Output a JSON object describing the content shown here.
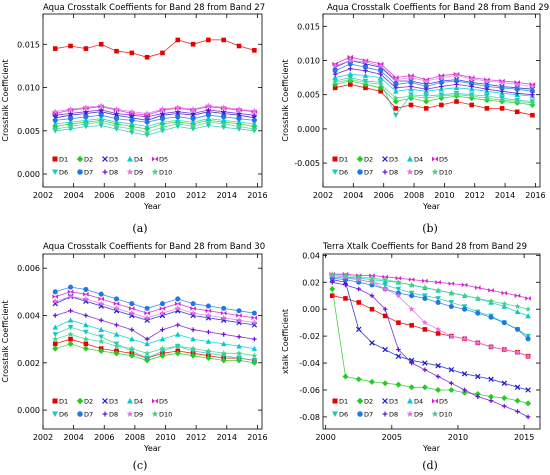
{
  "colors": {
    "D1": "#e60000",
    "D2": "#22cc22",
    "D3": "#1a1acc",
    "D4": "#00cccc",
    "D5": "#d21ed2",
    "D6": "#1fc8b4",
    "D7": "#1f78e6",
    "D8": "#6b0dd6",
    "D9": "#e673e6",
    "D10": "#41d287"
  },
  "chart_data": [
    {
      "type": "scatter",
      "panel_label": "(a)",
      "title": "Aqua Crosstalk Coeffients for Band 28 from Band 27",
      "xlabel": "Year",
      "ylabel": "Crosstalk Coefficient",
      "xlim": [
        2002,
        2016.3
      ],
      "ylim": [
        -0.0015,
        0.0185
      ],
      "xticks": [
        2002,
        2004,
        2006,
        2008,
        2010,
        2012,
        2014,
        2016
      ],
      "yticks": [
        0.0,
        0.005,
        0.01,
        0.015
      ],
      "ytick_labels": [
        "0.000",
        "0.005",
        "0.010",
        "0.015"
      ],
      "legend": [
        [
          "D1",
          "D2",
          "D3",
          "D4",
          "D5"
        ],
        [
          "D6",
          "D7",
          "D8",
          "D9",
          "D10"
        ]
      ],
      "legend_placement": "bottom-left",
      "x": [
        2002.8,
        2003.8,
        2004.8,
        2005.8,
        2006.8,
        2007.8,
        2008.8,
        2009.8,
        2010.8,
        2011.8,
        2012.8,
        2013.8,
        2014.8,
        2015.8
      ],
      "series": [
        {
          "name": "D1",
          "values": [
            0.0145,
            0.0148,
            0.0145,
            0.015,
            0.0142,
            0.014,
            0.0135,
            0.014,
            0.0155,
            0.015,
            0.0155,
            0.0155,
            0.0148,
            0.0143
          ]
        },
        {
          "name": "D2",
          "values": [
            0.0055,
            0.0058,
            0.006,
            0.0062,
            0.0058,
            0.0055,
            0.0052,
            0.0058,
            0.006,
            0.0058,
            0.0062,
            0.006,
            0.0058,
            0.0055
          ]
        },
        {
          "name": "D3",
          "values": [
            0.0065,
            0.0068,
            0.007,
            0.0072,
            0.0068,
            0.0065,
            0.0062,
            0.0068,
            0.007,
            0.0068,
            0.0072,
            0.007,
            0.0068,
            0.0065
          ]
        },
        {
          "name": "D4",
          "values": [
            0.0058,
            0.006,
            0.0062,
            0.0064,
            0.006,
            0.0058,
            0.0055,
            0.006,
            0.0062,
            0.006,
            0.0064,
            0.0062,
            0.006,
            0.0058
          ]
        },
        {
          "name": "D5",
          "values": [
            0.007,
            0.0074,
            0.0076,
            0.0078,
            0.0074,
            0.007,
            0.0068,
            0.0074,
            0.0076,
            0.0074,
            0.0078,
            0.0076,
            0.0074,
            0.0072
          ]
        },
        {
          "name": "D6",
          "values": [
            0.005,
            0.0052,
            0.0055,
            0.0056,
            0.0052,
            0.0048,
            0.0045,
            0.005,
            0.0055,
            0.0052,
            0.0056,
            0.0054,
            0.0052,
            0.005
          ]
        },
        {
          "name": "D7",
          "values": [
            0.0062,
            0.0064,
            0.0066,
            0.0068,
            0.0064,
            0.0062,
            0.006,
            0.0064,
            0.0066,
            0.0064,
            0.0068,
            0.0066,
            0.0064,
            0.0062
          ]
        },
        {
          "name": "D8",
          "values": [
            0.0068,
            0.007,
            0.0072,
            0.0074,
            0.007,
            0.0068,
            0.0066,
            0.007,
            0.0072,
            0.007,
            0.0074,
            0.0072,
            0.007,
            0.0068
          ]
        },
        {
          "name": "D9",
          "values": [
            0.0072,
            0.0075,
            0.0077,
            0.0079,
            0.0075,
            0.0072,
            0.007,
            0.0075,
            0.0077,
            0.0075,
            0.0079,
            0.0077,
            0.0075,
            0.0073
          ]
        },
        {
          "name": "D10",
          "values": [
            0.0052,
            0.0055,
            0.0058,
            0.006,
            0.0055,
            0.0052,
            0.0048,
            0.0054,
            0.0058,
            0.0055,
            0.006,
            0.0058,
            0.0055,
            0.0052
          ]
        }
      ]
    },
    {
      "type": "scatter",
      "panel_label": "(b)",
      "title": "Aqua Crosstalk Coeffients for Band 28 from Band 29",
      "xlabel": "Year",
      "ylabel": "Crosstalk Coefficient",
      "xlim": [
        2002,
        2016.3
      ],
      "ylim": [
        -0.0085,
        0.0168
      ],
      "xticks": [
        2002,
        2004,
        2006,
        2008,
        2010,
        2012,
        2014,
        2016
      ],
      "yticks": [
        -0.005,
        0.0,
        0.005,
        0.01,
        0.015
      ],
      "ytick_labels": [
        "-0.005",
        "0.000",
        "0.005",
        "0.010",
        "0.015"
      ],
      "legend": [
        [
          "D1",
          "D2",
          "D3",
          "D4",
          "D5"
        ],
        [
          "D6",
          "D7",
          "D8",
          "D9",
          "D10"
        ]
      ],
      "legend_placement": "bottom-left",
      "x": [
        2002.8,
        2003.8,
        2004.8,
        2005.8,
        2006.8,
        2007.8,
        2008.8,
        2009.8,
        2010.8,
        2011.8,
        2012.8,
        2013.8,
        2014.8,
        2015.8
      ],
      "series": [
        {
          "name": "D1",
          "values": [
            0.006,
            0.0065,
            0.006,
            0.0055,
            0.003,
            0.0035,
            0.003,
            0.0035,
            0.004,
            0.0035,
            0.003,
            0.003,
            0.0025,
            0.002
          ]
        },
        {
          "name": "D2",
          "values": [
            0.0065,
            0.007,
            0.0065,
            0.006,
            0.004,
            0.0045,
            0.004,
            0.0045,
            0.0048,
            0.0045,
            0.0042,
            0.004,
            0.0038,
            0.0035
          ]
        },
        {
          "name": "D3",
          "values": [
            0.009,
            0.01,
            0.0095,
            0.009,
            0.007,
            0.007,
            0.0065,
            0.007,
            0.0072,
            0.0068,
            0.0065,
            0.0062,
            0.006,
            0.0058
          ]
        },
        {
          "name": "D4",
          "values": [
            0.0075,
            0.008,
            0.0078,
            0.0075,
            0.0055,
            0.0058,
            0.0055,
            0.0058,
            0.006,
            0.0058,
            0.0055,
            0.0052,
            0.005,
            0.0048
          ]
        },
        {
          "name": "D5",
          "values": [
            0.0095,
            0.0105,
            0.01,
            0.0095,
            0.0075,
            0.0078,
            0.0072,
            0.0078,
            0.008,
            0.0075,
            0.0072,
            0.007,
            0.0068,
            0.0065
          ]
        },
        {
          "name": "D6",
          "values": [
            0.007,
            0.0075,
            0.007,
            0.0068,
            0.002,
            0.005,
            0.0048,
            0.005,
            0.0052,
            0.005,
            0.0048,
            0.0045,
            0.0042,
            0.004
          ]
        },
        {
          "name": "D7",
          "values": [
            0.0085,
            0.0095,
            0.009,
            0.0085,
            0.0065,
            0.0068,
            0.0062,
            0.0068,
            0.007,
            0.0066,
            0.0062,
            0.006,
            0.0058,
            0.0055
          ]
        },
        {
          "name": "D8",
          "values": [
            0.008,
            0.0088,
            0.0085,
            0.008,
            0.006,
            0.0062,
            0.0058,
            0.0062,
            0.0065,
            0.0062,
            0.0058,
            0.0055,
            0.0052,
            0.005
          ]
        },
        {
          "name": "D9",
          "values": [
            0.0092,
            0.01,
            0.0098,
            0.0092,
            0.0072,
            0.0075,
            0.007,
            0.0075,
            0.0078,
            0.0073,
            0.007,
            0.0068,
            0.0065,
            0.0062
          ]
        },
        {
          "name": "D10",
          "values": [
            0.0068,
            0.0072,
            0.0068,
            0.0065,
            0.0045,
            0.0048,
            0.0045,
            0.0048,
            0.005,
            0.0048,
            0.0045,
            0.0042,
            0.004,
            0.0038
          ]
        }
      ]
    },
    {
      "type": "scatter",
      "panel_label": "(c)",
      "title": "Aqua Crosstalk Coeffients for Band 28 from Band 30",
      "xlabel": "Year",
      "ylabel": "Crosstalk Coefficient",
      "xlim": [
        2002,
        2016.3
      ],
      "ylim": [
        -0.0008,
        0.0066
      ],
      "xticks": [
        2002,
        2004,
        2006,
        2008,
        2010,
        2012,
        2014,
        2016
      ],
      "yticks": [
        0.0,
        0.002,
        0.004,
        0.006
      ],
      "ytick_labels": [
        "0.000",
        "0.002",
        "0.004",
        "0.006"
      ],
      "legend": [
        [
          "D1",
          "D2",
          "D3",
          "D4",
          "D5"
        ],
        [
          "D6",
          "D7",
          "D8",
          "D9",
          "D10"
        ]
      ],
      "legend_placement": "bottom-left",
      "x": [
        2002.8,
        2003.8,
        2004.8,
        2005.8,
        2006.8,
        2007.8,
        2008.8,
        2009.8,
        2010.8,
        2011.8,
        2012.8,
        2013.8,
        2014.8,
        2015.8
      ],
      "series": [
        {
          "name": "D1",
          "values": [
            0.0028,
            0.003,
            0.0028,
            0.0026,
            0.0025,
            0.0024,
            0.0022,
            0.0024,
            0.0025,
            0.0024,
            0.0023,
            0.0022,
            0.0022,
            0.0021
          ]
        },
        {
          "name": "D2",
          "values": [
            0.0026,
            0.0028,
            0.0026,
            0.0025,
            0.0024,
            0.0023,
            0.0021,
            0.0023,
            0.0024,
            0.0023,
            0.0022,
            0.0021,
            0.0021,
            0.002
          ]
        },
        {
          "name": "D3",
          "values": [
            0.0045,
            0.0048,
            0.0046,
            0.0044,
            0.0042,
            0.004,
            0.0038,
            0.004,
            0.0042,
            0.004,
            0.0039,
            0.0038,
            0.0037,
            0.0036
          ]
        },
        {
          "name": "D4",
          "values": [
            0.0035,
            0.0038,
            0.0036,
            0.0034,
            0.0032,
            0.003,
            0.0028,
            0.003,
            0.0032,
            0.003,
            0.0029,
            0.0028,
            0.0027,
            0.0026
          ]
        },
        {
          "name": "D5",
          "values": [
            0.0048,
            0.005,
            0.0049,
            0.0047,
            0.0045,
            0.0043,
            0.0041,
            0.0043,
            0.0045,
            0.0043,
            0.0042,
            0.0041,
            0.004,
            0.0039
          ]
        },
        {
          "name": "D6",
          "values": [
            0.0032,
            0.0035,
            0.0033,
            0.0031,
            0.0028,
            0.0025,
            0.0022,
            0.0025,
            0.0027,
            0.0025,
            0.0024,
            0.0023,
            0.0022,
            0.0021
          ]
        },
        {
          "name": "D7",
          "values": [
            0.005,
            0.0052,
            0.0051,
            0.0049,
            0.0047,
            0.0045,
            0.0043,
            0.0045,
            0.0047,
            0.0045,
            0.0044,
            0.0043,
            0.0042,
            0.0041
          ]
        },
        {
          "name": "D8",
          "values": [
            0.004,
            0.0042,
            0.004,
            0.0038,
            0.0036,
            0.0034,
            0.003,
            0.0034,
            0.0036,
            0.0034,
            0.0033,
            0.0032,
            0.0031,
            0.003
          ]
        },
        {
          "name": "D9",
          "values": [
            0.0046,
            0.0048,
            0.0047,
            0.0045,
            0.0043,
            0.0041,
            0.0039,
            0.0041,
            0.0043,
            0.0041,
            0.004,
            0.0039,
            0.0038,
            0.0037
          ]
        },
        {
          "name": "D10",
          "values": [
            0.003,
            0.0032,
            0.003,
            0.0029,
            0.0027,
            0.0026,
            0.0024,
            0.0026,
            0.0027,
            0.0026,
            0.0025,
            0.0024,
            0.0024,
            0.0023
          ]
        }
      ]
    },
    {
      "type": "scatter",
      "panel_label": "(d)",
      "title": "Terra Xtalk Coeffients for Band 28 from Band 29",
      "xlabel": "Year",
      "ylabel": "xtalk Coefficient",
      "xlim": [
        1999.8,
        2016.2
      ],
      "ylim": [
        -0.089,
        0.041
      ],
      "xticks": [
        2000,
        2005,
        2010,
        2015
      ],
      "yticks": [
        -0.08,
        -0.06,
        -0.04,
        -0.02,
        0.0,
        0.02,
        0.04
      ],
      "ytick_labels": [
        "-0.08",
        "-0.06",
        "-0.04",
        "-0.02",
        "0.00",
        "0.02",
        "0.04"
      ],
      "legend": [
        [
          "D1",
          "D2",
          "D3",
          "D4",
          "D5"
        ],
        [
          "D6",
          "D7",
          "D8",
          "D9",
          "D10"
        ]
      ],
      "legend_placement": "bottom-left",
      "x": [
        2000.5,
        2001.5,
        2002.5,
        2003.5,
        2004.5,
        2005.5,
        2006.5,
        2007.5,
        2008.5,
        2009.5,
        2010.5,
        2011.5,
        2012.5,
        2013.5,
        2014.5,
        2015.3
      ],
      "series": [
        {
          "name": "D1",
          "values": [
            0.01,
            0.008,
            0.005,
            0.0,
            -0.005,
            -0.01,
            -0.012,
            -0.015,
            -0.018,
            -0.02,
            -0.022,
            -0.025,
            -0.028,
            -0.03,
            -0.032,
            -0.035
          ]
        },
        {
          "name": "D2",
          "values": [
            0.015,
            -0.05,
            -0.052,
            -0.054,
            -0.055,
            -0.056,
            -0.058,
            -0.058,
            -0.06,
            -0.06,
            -0.062,
            -0.063,
            -0.065,
            -0.066,
            -0.068,
            -0.07
          ]
        },
        {
          "name": "D3",
          "values": [
            0.022,
            0.02,
            -0.015,
            -0.025,
            -0.03,
            -0.035,
            -0.038,
            -0.04,
            -0.042,
            -0.045,
            -0.048,
            -0.05,
            -0.052,
            -0.055,
            -0.058,
            -0.06
          ]
        },
        {
          "name": "D4",
          "values": [
            0.025,
            0.024,
            0.023,
            0.022,
            0.021,
            0.02,
            0.018,
            0.016,
            0.014,
            0.012,
            0.01,
            0.008,
            0.005,
            0.002,
            -0.002,
            -0.005
          ]
        },
        {
          "name": "D5",
          "values": [
            0.026,
            0.026,
            0.025,
            0.025,
            0.024,
            0.023,
            0.022,
            0.021,
            0.02,
            0.019,
            0.018,
            0.016,
            0.014,
            0.012,
            0.01,
            0.008
          ]
        },
        {
          "name": "D6",
          "values": [
            0.024,
            0.023,
            0.022,
            0.02,
            0.018,
            0.015,
            0.012,
            0.01,
            0.008,
            0.005,
            0.002,
            -0.002,
            -0.005,
            -0.01,
            -0.015,
            -0.02
          ]
        },
        {
          "name": "D7",
          "values": [
            0.023,
            0.022,
            0.02,
            0.018,
            0.015,
            0.012,
            0.01,
            0.008,
            0.005,
            0.002,
            0.0,
            -0.003,
            -0.006,
            -0.01,
            -0.015,
            -0.022
          ]
        },
        {
          "name": "D8",
          "values": [
            0.02,
            0.018,
            0.015,
            0.01,
            0.0,
            -0.03,
            -0.04,
            -0.045,
            -0.05,
            -0.055,
            -0.06,
            -0.065,
            -0.068,
            -0.072,
            -0.076,
            -0.08
          ]
        },
        {
          "name": "D9",
          "values": [
            0.025,
            0.024,
            0.022,
            0.02,
            0.015,
            0.01,
            0.0,
            -0.01,
            -0.015,
            -0.02,
            -0.022,
            -0.025,
            -0.028,
            -0.03,
            -0.032,
            -0.035
          ]
        },
        {
          "name": "D10",
          "values": [
            0.026,
            0.025,
            0.024,
            0.023,
            0.022,
            0.02,
            0.018,
            0.016,
            0.014,
            0.012,
            0.01,
            0.008,
            0.006,
            0.004,
            0.002,
            0.0
          ]
        }
      ]
    }
  ]
}
